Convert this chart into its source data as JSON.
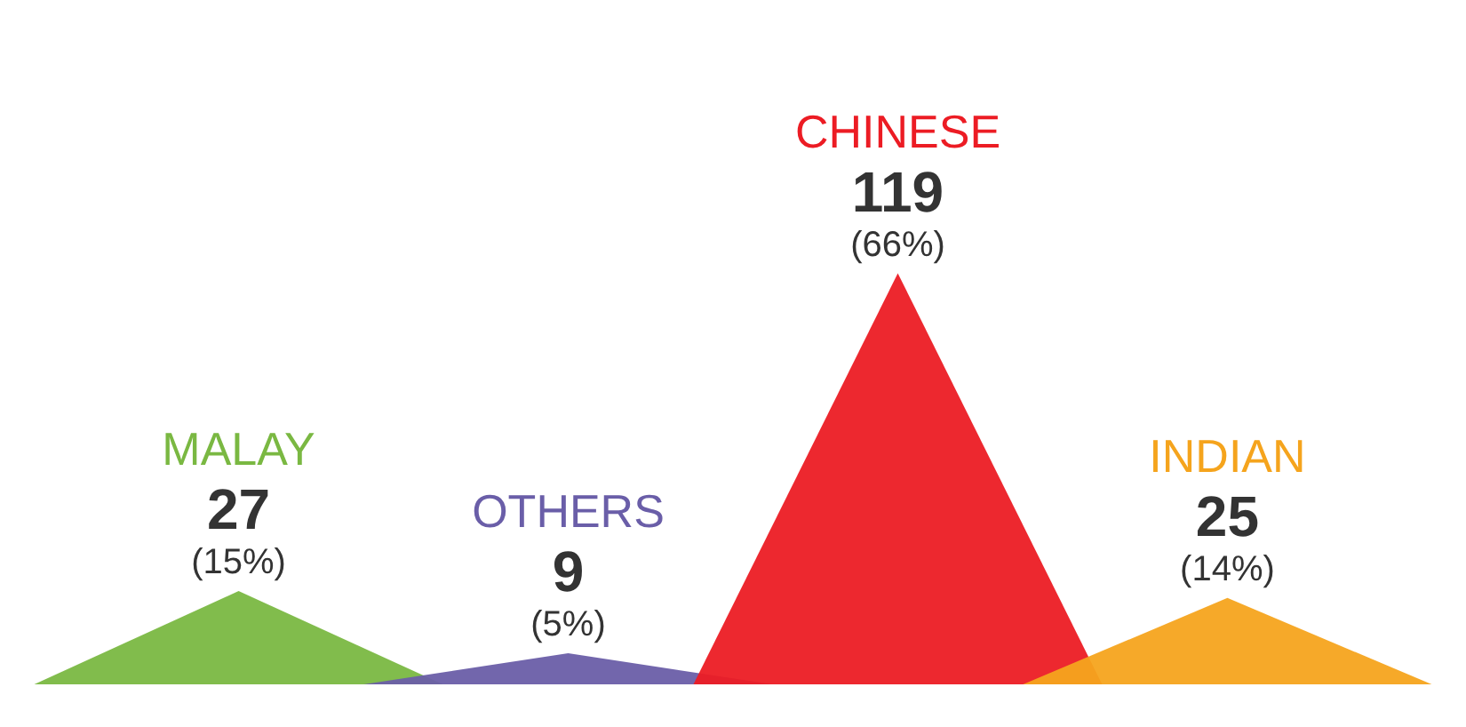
{
  "chart_data": {
    "type": "other",
    "categories": [
      "MALAY",
      "OTHERS",
      "CHINESE",
      "INDIAN"
    ],
    "values": [
      27,
      9,
      119,
      25
    ],
    "colors": [
      "#7ab842",
      "#6a5ea8",
      "#ec1c24",
      "#f5a41d"
    ],
    "data_labels": true,
    "annotations": [
      "(15%)",
      "(5%)",
      "(66%)",
      "(14%)"
    ]
  }
}
